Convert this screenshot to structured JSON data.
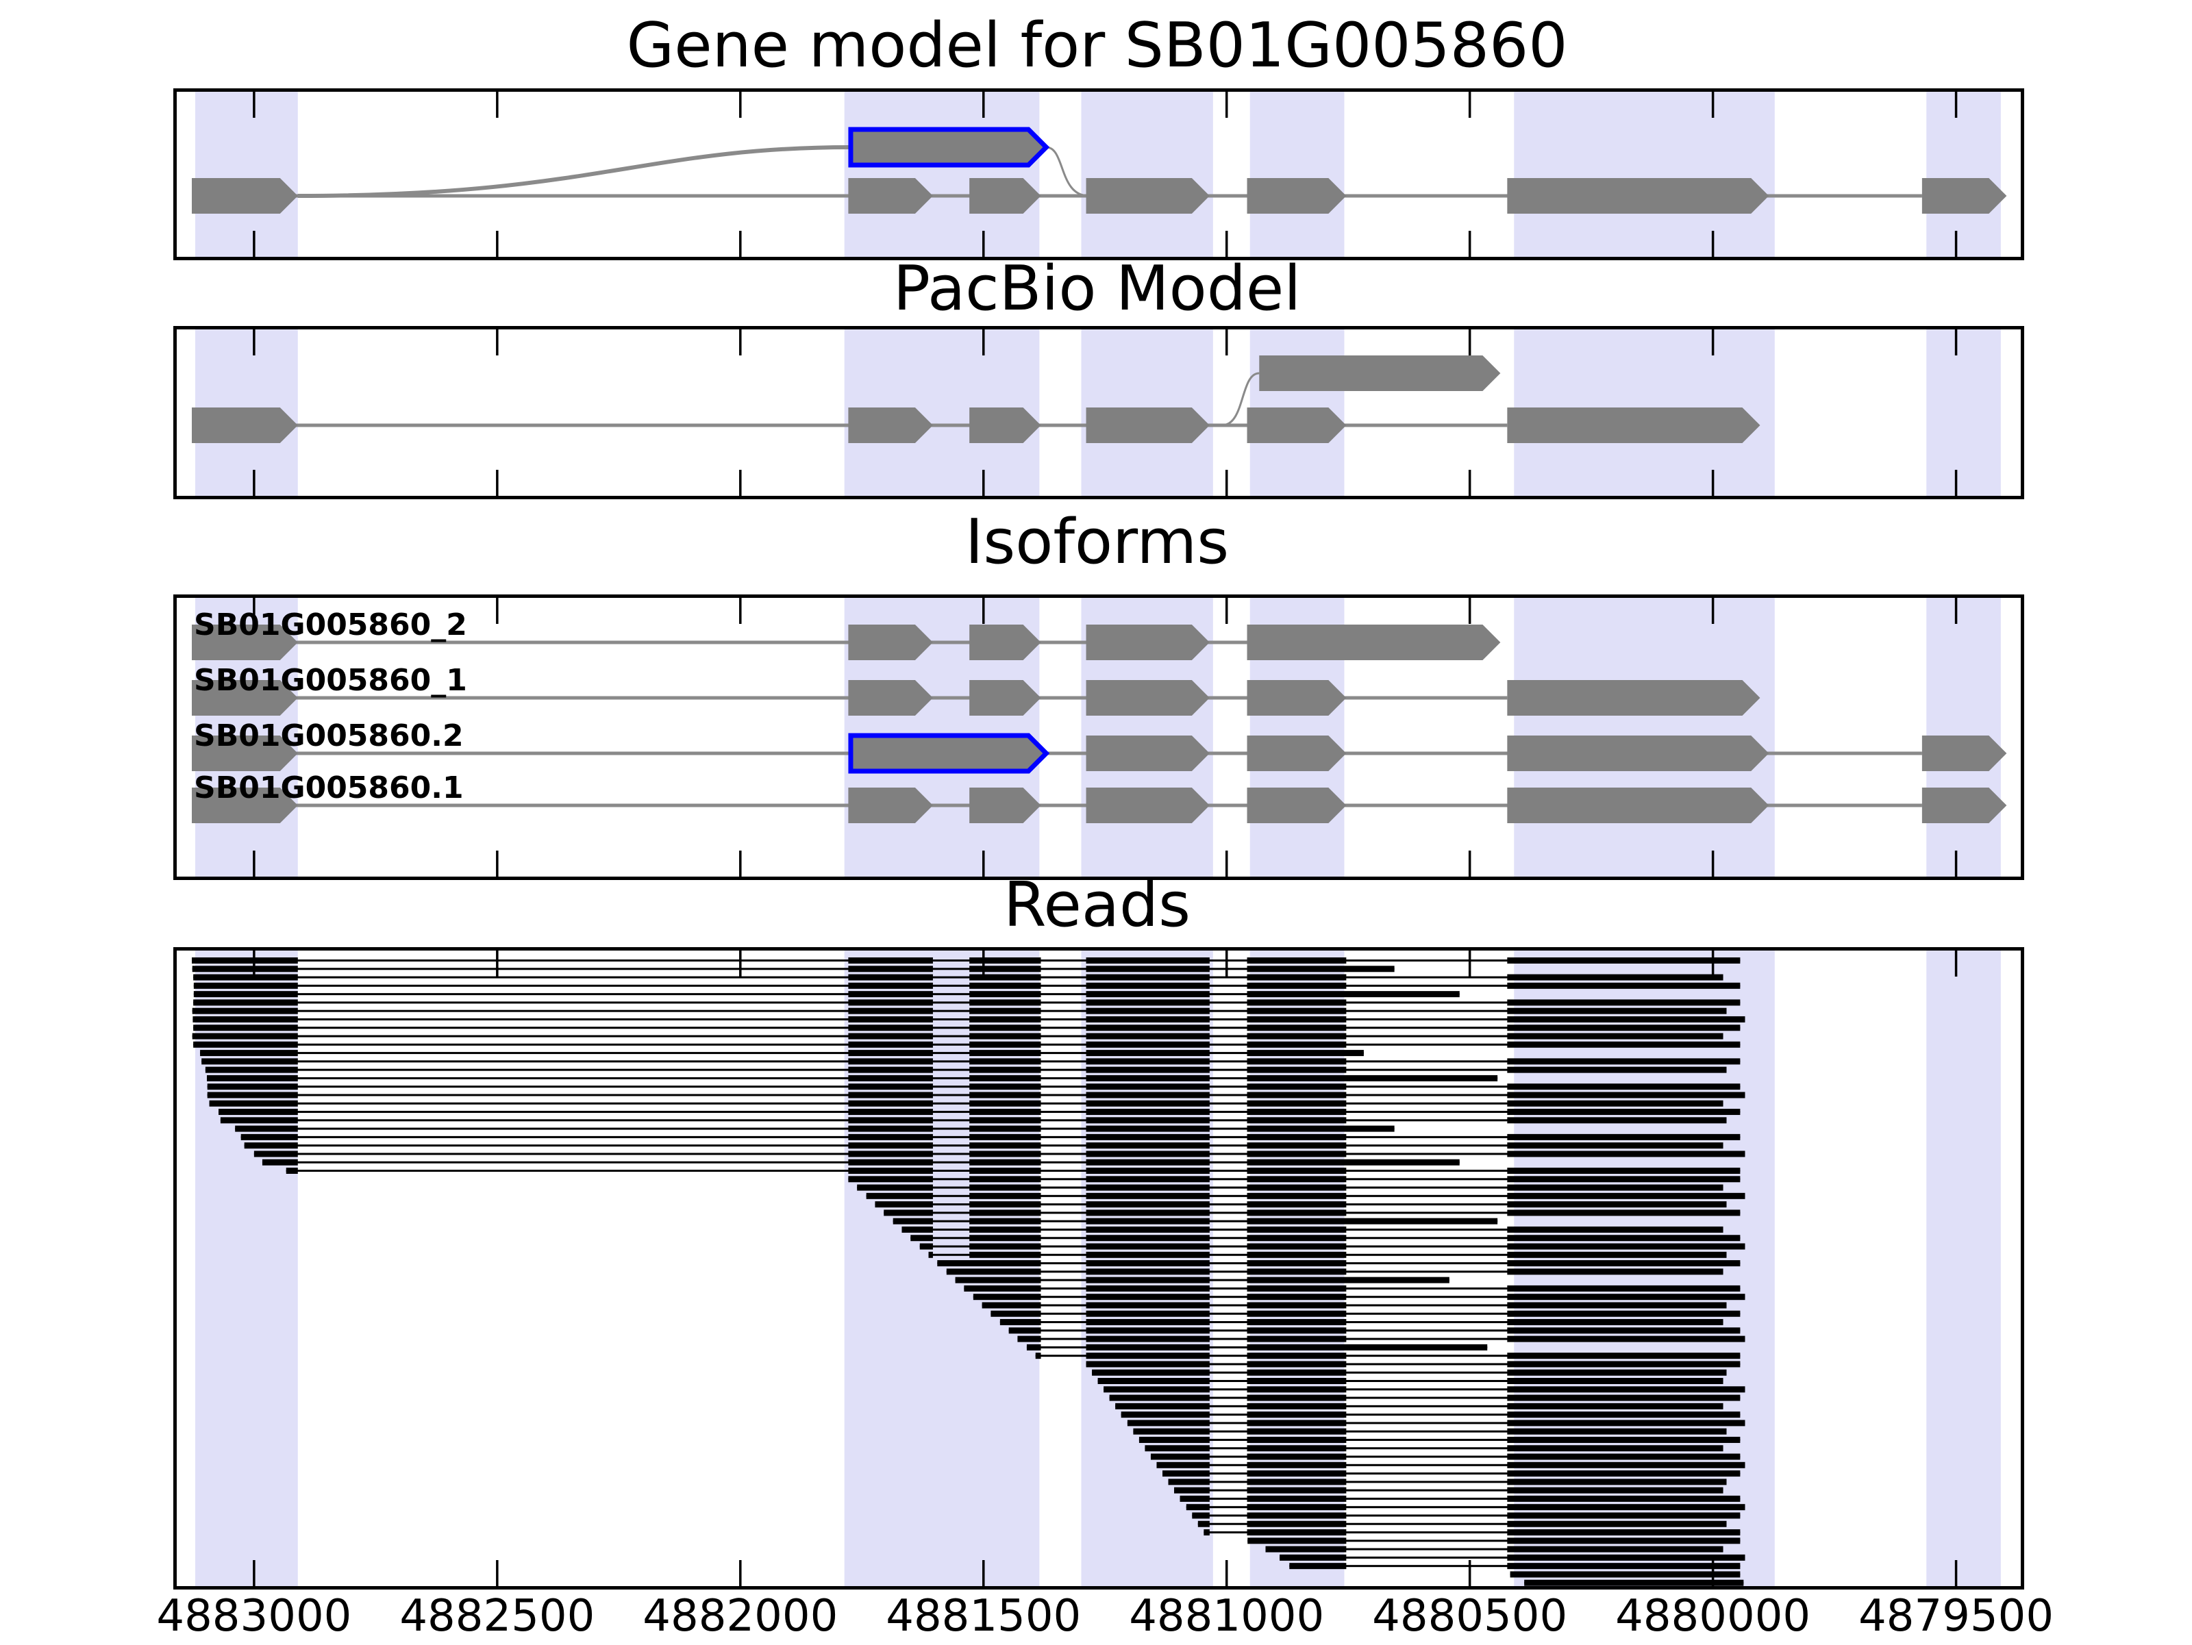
{
  "figure": {
    "title": "Gene model for SB01G005860",
    "panel_titles": {
      "pacbio": "PacBio Model",
      "isoforms": "Isoforms",
      "reads": "Reads"
    }
  },
  "chart_data": {
    "type": "genome-browser-tracks",
    "title": "Gene model for SB01G005860",
    "subplot_titles": [
      "PacBio Model",
      "Isoforms",
      "Reads"
    ],
    "x_axis": {
      "orientation": "reversed",
      "left_coord": 4883159,
      "right_coord": 4879367,
      "tick_values": [
        4883000,
        4882500,
        4882000,
        4881500,
        4881000,
        4880500,
        4880000,
        4879500
      ]
    },
    "highlight_bands": [
      [
        4883121,
        4882910
      ],
      [
        4881786,
        4881385
      ],
      [
        4881299,
        4881028
      ],
      [
        4880952,
        4880758
      ],
      [
        4880409,
        4879873
      ],
      [
        4879561,
        4879408
      ]
    ],
    "exons": {
      "A": [
        4883128,
        4882910
      ],
      "B": [
        4881778,
        4881604
      ],
      "C": [
        4881529,
        4881382
      ],
      "D": [
        4881289,
        4881035
      ],
      "E": [
        4880958,
        4880754
      ],
      "E_EXT": [
        4880958,
        4880437
      ],
      "F": [
        4880423,
        4879885
      ],
      "F_SHORT": [
        4880423,
        4879903
      ],
      "G": [
        4879570,
        4879396
      ],
      "ALT": [
        4881773,
        4881371
      ],
      "PB_ALT": [
        4880933,
        4880437
      ]
    },
    "gene_model": {
      "exons": [
        "A",
        "B",
        "C",
        "D",
        "E",
        "F",
        "G"
      ],
      "alt_exon": "ALT",
      "alt_outlined": true
    },
    "pacbio_model": {
      "exons": [
        "A",
        "B",
        "C",
        "D",
        "E",
        "F_SHORT"
      ],
      "alt_exon": "PB_ALT",
      "alt_outlined": false
    },
    "isoforms": [
      {
        "name": "SB01G005860_2",
        "exons": [
          "A",
          "B",
          "C",
          "D",
          "E_EXT"
        ],
        "outlined": []
      },
      {
        "name": "SB01G005860_1",
        "exons": [
          "A",
          "B",
          "C",
          "D",
          "E",
          "F_SHORT"
        ],
        "outlined": []
      },
      {
        "name": "SB01G005860.2",
        "exons": [
          "A",
          "ALT",
          "D",
          "E",
          "F",
          "G"
        ],
        "outlined": [
          "ALT"
        ]
      },
      {
        "name": "SB01G005860.1",
        "exons": [
          "A",
          "B",
          "C",
          "D",
          "E",
          "F",
          "G"
        ],
        "outlined": []
      }
    ],
    "read_exon_columns": [
      "A",
      "B",
      "C",
      "D",
      "E",
      "F"
    ],
    "reads": [
      [
        4883128,
        4879944
      ],
      [
        4883127,
        4880655
      ],
      [
        4883125,
        4879979
      ],
      [
        4883124,
        4879944
      ],
      [
        4883124,
        4880521
      ],
      [
        4883125,
        4879944
      ],
      [
        4883127,
        4879972
      ],
      [
        4883126,
        4879934
      ],
      [
        4883125,
        4879944
      ],
      [
        4883127,
        4879979
      ],
      [
        4883125,
        4879944
      ],
      [
        4883111,
        4880718
      ],
      [
        4883108,
        4879944
      ],
      [
        4883100,
        4879972
      ],
      [
        4883097,
        4880443
      ],
      [
        4883096,
        4879944
      ],
      [
        4883096,
        4879934
      ],
      [
        4883092,
        4879979
      ],
      [
        4883073,
        4879944
      ],
      [
        4883069,
        4879972
      ],
      [
        4883039,
        4880655
      ],
      [
        4883027,
        4879944
      ],
      [
        4883020,
        4879979
      ],
      [
        4883000,
        4879934
      ],
      [
        4882983,
        4880521
      ],
      [
        4882934,
        4879944
      ],
      [
        4881778,
        4879944
      ],
      [
        4881760,
        4879979
      ],
      [
        4881741,
        4879934
      ],
      [
        4881723,
        4879972
      ],
      [
        4881705,
        4879944
      ],
      [
        4881686,
        4880443
      ],
      [
        4881668,
        4879979
      ],
      [
        4881650,
        4879944
      ],
      [
        4881631,
        4879934
      ],
      [
        4881613,
        4879972
      ],
      [
        4881595,
        4879944
      ],
      [
        4881576,
        4879979
      ],
      [
        4881558,
        4880542
      ],
      [
        4881540,
        4879944
      ],
      [
        4881521,
        4879934
      ],
      [
        4881503,
        4879972
      ],
      [
        4881485,
        4879944
      ],
      [
        4881466,
        4879979
      ],
      [
        4881448,
        4879944
      ],
      [
        4881430,
        4879934
      ],
      [
        4881411,
        4880464
      ],
      [
        4881393,
        4879944
      ],
      [
        4881289,
        4879944
      ],
      [
        4881277,
        4879972
      ],
      [
        4881265,
        4879979
      ],
      [
        4881253,
        4879934
      ],
      [
        4881241,
        4879944
      ],
      [
        4881229,
        4879979
      ],
      [
        4881217,
        4879944
      ],
      [
        4881204,
        4879934
      ],
      [
        4881192,
        4879972
      ],
      [
        4881180,
        4879944
      ],
      [
        4881168,
        4879979
      ],
      [
        4881156,
        4879944
      ],
      [
        4881144,
        4879934
      ],
      [
        4881132,
        4879944
      ],
      [
        4881120,
        4879972
      ],
      [
        4881108,
        4879979
      ],
      [
        4881096,
        4879944
      ],
      [
        4881083,
        4879934
      ],
      [
        4881071,
        4879944
      ],
      [
        4881059,
        4879972
      ],
      [
        4881047,
        4879944
      ],
      [
        4880957,
        4879944
      ],
      [
        4880920,
        4879979
      ],
      [
        4880891,
        4879934
      ],
      [
        4880871,
        4879944
      ],
      [
        4880417,
        4879944
      ],
      [
        4880388,
        4879937
      ]
    ],
    "colors": {
      "exon_fill": "#808080",
      "intron_line": "#8a8a8a",
      "alt_outline": "#0000ff",
      "highlight_band": "#e0e0f8",
      "read": "#000000",
      "border": "#000000"
    }
  }
}
